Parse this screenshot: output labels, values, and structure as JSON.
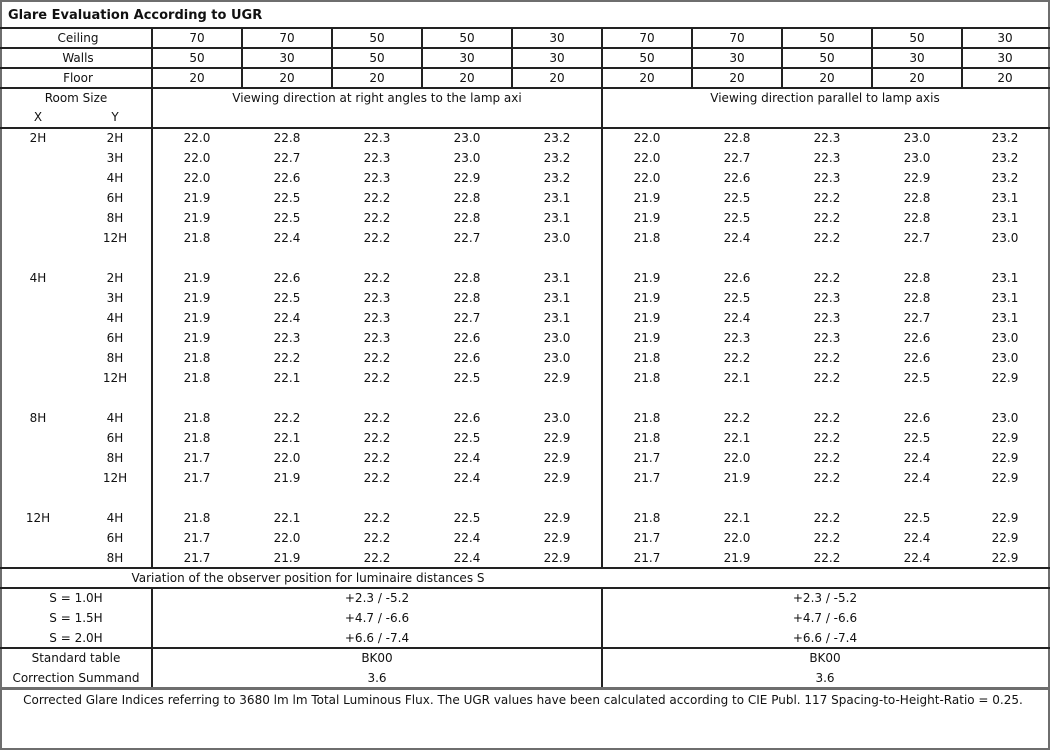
{
  "title": "Glare Evaluation According to UGR",
  "reflectances": [
    {
      "label": "Ceiling",
      "values": [
        "70",
        "70",
        "50",
        "50",
        "30",
        "70",
        "70",
        "50",
        "50",
        "30"
      ]
    },
    {
      "label": "Walls",
      "values": [
        "50",
        "30",
        "50",
        "30",
        "30",
        "50",
        "30",
        "50",
        "30",
        "30"
      ]
    },
    {
      "label": "Floor",
      "values": [
        "20",
        "20",
        "20",
        "20",
        "20",
        "20",
        "20",
        "20",
        "20",
        "20"
      ]
    }
  ],
  "header": {
    "room_size": "Room Size",
    "x": "X",
    "y": "Y",
    "left_direction": "Viewing direction at right angles to the lamp axi",
    "right_direction": "Viewing direction parallel to lamp axis"
  },
  "groups": [
    {
      "x": "2H",
      "rows": [
        {
          "y": "2H",
          "left": [
            "22.0",
            "22.8",
            "22.3",
            "23.0",
            "23.2"
          ],
          "right": [
            "22.0",
            "22.8",
            "22.3",
            "23.0",
            "23.2"
          ]
        },
        {
          "y": "3H",
          "left": [
            "22.0",
            "22.7",
            "22.3",
            "23.0",
            "23.2"
          ],
          "right": [
            "22.0",
            "22.7",
            "22.3",
            "23.0",
            "23.2"
          ]
        },
        {
          "y": "4H",
          "left": [
            "22.0",
            "22.6",
            "22.3",
            "22.9",
            "23.2"
          ],
          "right": [
            "22.0",
            "22.6",
            "22.3",
            "22.9",
            "23.2"
          ]
        },
        {
          "y": "6H",
          "left": [
            "21.9",
            "22.5",
            "22.2",
            "22.8",
            "23.1"
          ],
          "right": [
            "21.9",
            "22.5",
            "22.2",
            "22.8",
            "23.1"
          ]
        },
        {
          "y": "8H",
          "left": [
            "21.9",
            "22.5",
            "22.2",
            "22.8",
            "23.1"
          ],
          "right": [
            "21.9",
            "22.5",
            "22.2",
            "22.8",
            "23.1"
          ]
        },
        {
          "y": "12H",
          "left": [
            "21.8",
            "22.4",
            "22.2",
            "22.7",
            "23.0"
          ],
          "right": [
            "21.8",
            "22.4",
            "22.2",
            "22.7",
            "23.0"
          ]
        }
      ]
    },
    {
      "x": "4H",
      "rows": [
        {
          "y": "2H",
          "left": [
            "21.9",
            "22.6",
            "22.2",
            "22.8",
            "23.1"
          ],
          "right": [
            "21.9",
            "22.6",
            "22.2",
            "22.8",
            "23.1"
          ]
        },
        {
          "y": "3H",
          "left": [
            "21.9",
            "22.5",
            "22.3",
            "22.8",
            "23.1"
          ],
          "right": [
            "21.9",
            "22.5",
            "22.3",
            "22.8",
            "23.1"
          ]
        },
        {
          "y": "4H",
          "left": [
            "21.9",
            "22.4",
            "22.3",
            "22.7",
            "23.1"
          ],
          "right": [
            "21.9",
            "22.4",
            "22.3",
            "22.7",
            "23.1"
          ]
        },
        {
          "y": "6H",
          "left": [
            "21.9",
            "22.3",
            "22.3",
            "22.6",
            "23.0"
          ],
          "right": [
            "21.9",
            "22.3",
            "22.3",
            "22.6",
            "23.0"
          ]
        },
        {
          "y": "8H",
          "left": [
            "21.8",
            "22.2",
            "22.2",
            "22.6",
            "23.0"
          ],
          "right": [
            "21.8",
            "22.2",
            "22.2",
            "22.6",
            "23.0"
          ]
        },
        {
          "y": "12H",
          "left": [
            "21.8",
            "22.1",
            "22.2",
            "22.5",
            "22.9"
          ],
          "right": [
            "21.8",
            "22.1",
            "22.2",
            "22.5",
            "22.9"
          ]
        }
      ]
    },
    {
      "x": "8H",
      "rows": [
        {
          "y": "4H",
          "left": [
            "21.8",
            "22.2",
            "22.2",
            "22.6",
            "23.0"
          ],
          "right": [
            "21.8",
            "22.2",
            "22.2",
            "22.6",
            "23.0"
          ]
        },
        {
          "y": "6H",
          "left": [
            "21.8",
            "22.1",
            "22.2",
            "22.5",
            "22.9"
          ],
          "right": [
            "21.8",
            "22.1",
            "22.2",
            "22.5",
            "22.9"
          ]
        },
        {
          "y": "8H",
          "left": [
            "21.7",
            "22.0",
            "22.2",
            "22.4",
            "22.9"
          ],
          "right": [
            "21.7",
            "22.0",
            "22.2",
            "22.4",
            "22.9"
          ]
        },
        {
          "y": "12H",
          "left": [
            "21.7",
            "21.9",
            "22.2",
            "22.4",
            "22.9"
          ],
          "right": [
            "21.7",
            "21.9",
            "22.2",
            "22.4",
            "22.9"
          ]
        }
      ]
    },
    {
      "x": "12H",
      "rows": [
        {
          "y": "4H",
          "left": [
            "21.8",
            "22.1",
            "22.2",
            "22.5",
            "22.9"
          ],
          "right": [
            "21.8",
            "22.1",
            "22.2",
            "22.5",
            "22.9"
          ]
        },
        {
          "y": "6H",
          "left": [
            "21.7",
            "22.0",
            "22.2",
            "22.4",
            "22.9"
          ],
          "right": [
            "21.7",
            "22.0",
            "22.2",
            "22.4",
            "22.9"
          ]
        },
        {
          "y": "8H",
          "left": [
            "21.7",
            "21.9",
            "22.2",
            "22.4",
            "22.9"
          ],
          "right": [
            "21.7",
            "21.9",
            "22.2",
            "22.4",
            "22.9"
          ]
        }
      ]
    }
  ],
  "variation": {
    "title": "Variation of the observer position for luminaire distances S",
    "rows": [
      {
        "label": "S = 1.0H",
        "left": "+2.3 / -5.2",
        "right": "+2.3 / -5.2"
      },
      {
        "label": "S = 1.5H",
        "left": "+4.7 / -6.6",
        "right": "+4.7 / -6.6"
      },
      {
        "label": "S = 2.0H",
        "left": "+6.6 / -7.4",
        "right": "+6.6 / -7.4"
      }
    ]
  },
  "standard": {
    "label": "Standard table",
    "left": "BK00",
    "right": "BK00"
  },
  "correction": {
    "label": "Correction Summand",
    "left": "3.6",
    "right": "3.6"
  },
  "footnote": "Corrected Glare Indices referring to 3680 lm lm Total Luminous Flux. The UGR values have been calculated according to CIE Publ. 117    Spacing-to-Height-Ratio = 0.25."
}
